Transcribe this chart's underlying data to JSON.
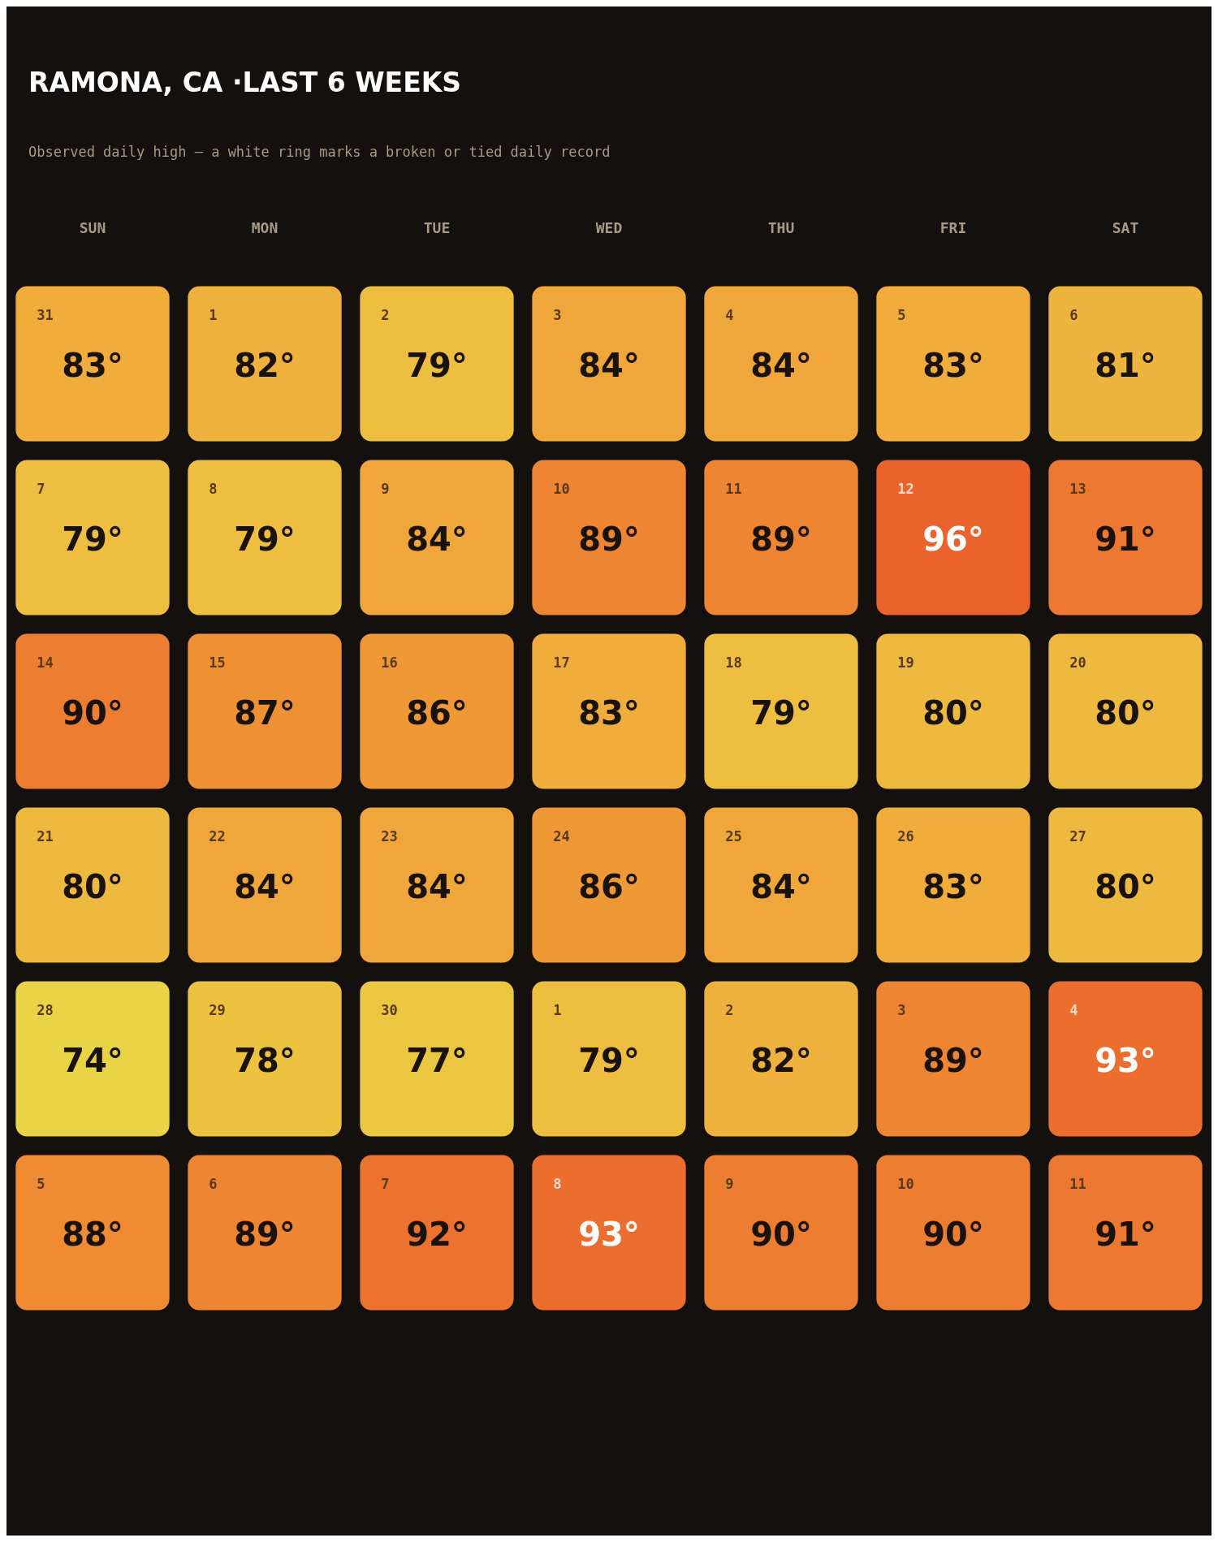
{
  "chart_data": {
    "type": "heatmap",
    "title": "RAMONA, CA ·LAST 6 WEEKS",
    "subtitle": "Observed daily high — a white ring marks a broken or tied daily record",
    "categories": [
      "SUN",
      "MON",
      "TUE",
      "WED",
      "THU",
      "FRI",
      "SAT"
    ],
    "y_categories": [
      null,
      null,
      null,
      null,
      null,
      null
    ],
    "cells": [
      [
        83,
        82,
        79,
        84,
        84,
        83,
        81
      ],
      [
        79,
        79,
        84,
        89,
        89,
        96,
        91
      ],
      [
        90,
        87,
        86,
        83,
        79,
        80,
        80
      ],
      [
        80,
        84,
        84,
        86,
        84,
        83,
        80
      ],
      [
        74,
        78,
        77,
        79,
        82,
        89,
        93
      ],
      [
        88,
        89,
        92,
        93,
        90,
        90,
        91
      ]
    ],
    "cell_labels": [
      [
        "83°",
        "82°",
        "79°",
        "84°",
        "84°",
        "83°",
        "81°"
      ],
      [
        "79°",
        "79°",
        "84°",
        "89°",
        "89°",
        "96°",
        "91°"
      ],
      [
        "90°",
        "87°",
        "86°",
        "83°",
        "79°",
        "80°",
        "80°"
      ],
      [
        "80°",
        "84°",
        "84°",
        "86°",
        "84°",
        "83°",
        "80°"
      ],
      [
        "74°",
        "78°",
        "77°",
        "79°",
        "82°",
        "89°",
        "93°"
      ],
      [
        "88°",
        "89°",
        "92°",
        "93°",
        "90°",
        "90°",
        "91°"
      ]
    ],
    "annotations": [
      "31",
      "1",
      "2",
      "3",
      "4",
      "5",
      "6",
      "7",
      "8",
      "9",
      "10",
      "11",
      "12",
      "13",
      "14",
      "15",
      "16",
      "17",
      "18",
      "19",
      "20",
      "21",
      "22",
      "23",
      "24",
      "25",
      "26",
      "27",
      "28",
      "29",
      "30",
      "1",
      "2",
      "3",
      "4",
      "5",
      "6",
      "7",
      "8",
      "9",
      "10",
      "11"
    ],
    "colors": [
      "#e8d444",
      "#ecc040",
      "#f0ae3c",
      "#ee9034",
      "#ec7430",
      "#ea622c"
    ],
    "tick_labels": "x"
  }
}
